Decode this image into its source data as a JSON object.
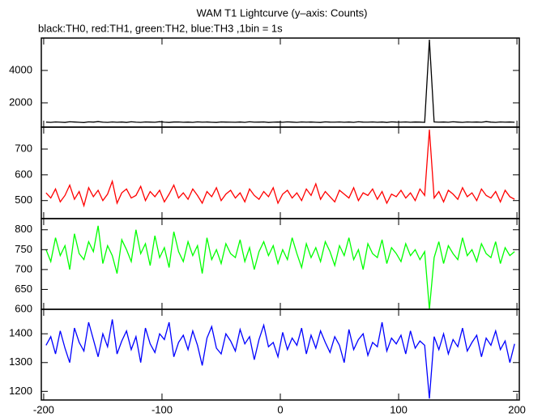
{
  "header": {
    "title": "WAM T1 Lightcurve (y–axis: Counts)",
    "subtitle": "black:TH0, red:TH1, green:TH2, blue:TH3 ,1bin = 1s"
  },
  "chart_data": {
    "type": "line",
    "x": [
      -198,
      -194,
      -190,
      -186,
      -182,
      -178,
      -174,
      -170,
      -166,
      -162,
      -158,
      -154,
      -150,
      -146,
      -142,
      -138,
      -134,
      -130,
      -126,
      -122,
      -118,
      -114,
      -110,
      -106,
      -102,
      -98,
      -94,
      -90,
      -86,
      -82,
      -78,
      -74,
      -70,
      -66,
      -62,
      -58,
      -54,
      -50,
      -46,
      -42,
      -38,
      -34,
      -30,
      -26,
      -22,
      -18,
      -14,
      -10,
      -6,
      -2,
      2,
      6,
      10,
      14,
      18,
      22,
      26,
      30,
      34,
      38,
      42,
      46,
      50,
      54,
      58,
      62,
      66,
      70,
      74,
      78,
      82,
      86,
      90,
      94,
      98,
      102,
      106,
      110,
      114,
      118,
      122,
      126,
      130,
      134,
      138,
      142,
      146,
      150,
      154,
      158,
      162,
      166,
      170,
      174,
      178,
      182,
      186,
      190,
      194,
      198
    ],
    "xlim": [
      -202,
      202
    ],
    "xticks": [
      -200,
      -100,
      0,
      100,
      200
    ],
    "panels": [
      {
        "ylim": [
          500,
          6000
        ],
        "yticks": [
          2000,
          4000
        ],
        "series": [
          {
            "color": "#000000",
            "values": [
              810,
              795,
              820,
              805,
              790,
              830,
              815,
              800,
              785,
              825,
              810,
              840,
              805,
              795,
              820,
              800,
              815,
              790,
              830,
              805,
              795,
              820,
              810,
              800,
              835,
              805,
              790,
              815,
              820,
              800,
              810,
              795,
              825,
              805,
              815,
              800,
              790,
              820,
              810,
              805,
              800,
              815,
              795,
              830,
              805,
              810,
              820,
              790,
              805,
              815,
              800,
              825,
              810,
              795,
              820,
              805,
              815,
              800,
              790,
              825,
              810,
              805,
              820,
              800,
              815,
              795,
              830,
              810,
              805,
              820,
              800,
              815,
              790,
              825,
              810,
              805,
              820,
              800,
              815,
              810,
              795,
              5900,
              820,
              805,
              815,
              800,
              830,
              810,
              795,
              820,
              805,
              815,
              800,
              840,
              810,
              795,
              820,
              805,
              815,
              800
            ]
          }
        ]
      },
      {
        "ylim": [
          430,
          785
        ],
        "yticks": [
          500,
          600,
          700
        ],
        "series": [
          {
            "color": "#ff0000",
            "values": [
              530,
              510,
              545,
              495,
              520,
              560,
              505,
              535,
              480,
              550,
              515,
              540,
              500,
              525,
              575,
              490,
              530,
              545,
              510,
              520,
              555,
              500,
              535,
              515,
              540,
              495,
              525,
              560,
              510,
              530,
              505,
              545,
              520,
              490,
              535,
              515,
              550,
              500,
              525,
              540,
              510,
              530,
              495,
              545,
              520,
              505,
              535,
              515,
              550,
              490,
              525,
              540,
              510,
              530,
              500,
              545,
              520,
              565,
              505,
              535,
              515,
              495,
              540,
              525,
              510,
              550,
              500,
              530,
              520,
              545,
              505,
              535,
              490,
              525,
              515,
              540,
              510,
              530,
              500,
              545,
              520,
              775,
              510,
              535,
              495,
              540,
              525,
              505,
              550,
              515,
              530,
              500,
              545,
              520,
              510,
              535,
              495,
              540,
              515,
              505
            ]
          }
        ]
      },
      {
        "ylim": [
          600,
          828
        ],
        "yticks": [
          600,
          650,
          700,
          750,
          800
        ],
        "series": [
          {
            "color": "#00ff00",
            "values": [
              750,
              720,
              780,
              735,
              760,
              700,
              790,
              740,
              725,
              770,
              745,
              810,
              715,
              760,
              735,
              690,
              775,
              750,
              720,
              800,
              740,
              765,
              710,
              785,
              730,
              755,
              705,
              795,
              745,
              720,
              770,
              735,
              760,
              690,
              780,
              725,
              750,
              715,
              765,
              740,
              730,
              775,
              720,
              755,
              700,
              745,
              770,
              735,
              760,
              715,
              750,
              725,
              780,
              740,
              705,
              765,
              730,
              755,
              720,
              770,
              745,
              710,
              760,
              735,
              780,
              725,
              750,
              700,
              765,
              740,
              730,
              775,
              715,
              755,
              740,
              720,
              765,
              735,
              750,
              725,
              745,
              600,
              730,
              770,
              715,
              760,
              740,
              725,
              780,
              735,
              750,
              720,
              765,
              740,
              730,
              770,
              715,
              755,
              735,
              745
            ]
          }
        ]
      },
      {
        "ylim": [
          1170,
          1485
        ],
        "yticks": [
          1200,
          1300,
          1400
        ],
        "series": [
          {
            "color": "#0000ff",
            "values": [
              1360,
              1390,
              1330,
              1410,
              1350,
              1300,
              1420,
              1370,
              1340,
              1440,
              1380,
              1320,
              1400,
              1355,
              1450,
              1330,
              1375,
              1410,
              1345,
              1390,
              1300,
              1420,
              1365,
              1335,
              1400,
              1380,
              1440,
              1320,
              1370,
              1395,
              1345,
              1410,
              1360,
              1290,
              1385,
              1425,
              1350,
              1330,
              1400,
              1375,
              1340,
              1415,
              1365,
              1390,
              1310,
              1380,
              1430,
              1355,
              1370,
              1320,
              1405,
              1345,
              1385,
              1360,
              1420,
              1330,
              1395,
              1350,
              1410,
              1370,
              1335,
              1390,
              1360,
              1300,
              1415,
              1345,
              1380,
              1400,
              1325,
              1370,
              1355,
              1440,
              1340,
              1385,
              1365,
              1395,
              1330,
              1410,
              1350,
              1375,
              1360,
              1175,
              1390,
              1345,
              1400,
              1330,
              1380,
              1355,
              1420,
              1340,
              1370,
              1395,
              1320,
              1385,
              1360,
              1410,
              1345,
              1375,
              1300,
              1365
            ]
          }
        ]
      }
    ]
  }
}
